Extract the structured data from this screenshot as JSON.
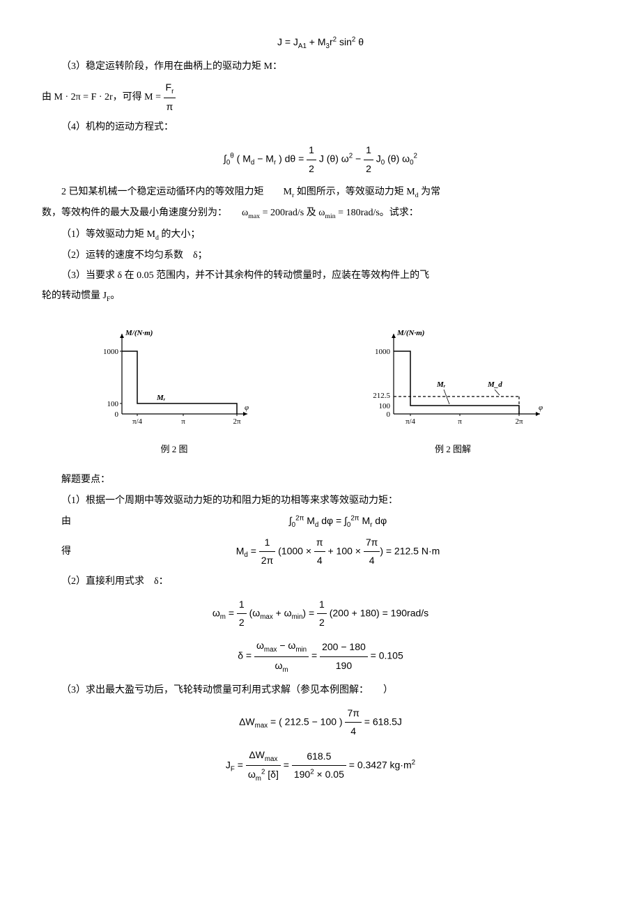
{
  "eq_top": "J = J<sub>A1</sub> + M<sub>3</sub>r<sup>2</sup> sin<sup>2</sup> θ",
  "p3": "（3）稳定运转阶段，作用在曲柄上的驱动力矩 M：",
  "p3_line": "由 M · 2π = F · 2r，可得 M = ",
  "p3_frac_num": "F<sub>r</sub>",
  "p3_frac_den": "π",
  "p4": "（4）机构的运动方程式：",
  "eq4": "∫<sub>0</sub><sup>θ</sup> ( M<sub>d</sub> − M<sub>r</sub> ) dθ = <span class=\"frac\"><span class=\"num\">1</span><span class=\"den\">2</span></span> J (θ) ω<sup>2</sup> − <span class=\"frac\"><span class=\"num\">1</span><span class=\"den\">2</span></span> J<sub>0</sub> (θ) ω<sub>0</sub><sup>2</sup>",
  "prob2_l1": "2 已知某机械一个稳定运动循环内的等效阻力矩　　M<sub>r</sub> 如图所示，等效驱动力矩 M<sub>d</sub> 为常",
  "prob2_l2": "数，等效构件的最大及最小角速度分别为：　　ω<sub>max</sub> = 200rad/s 及 ω<sub>min</sub> = 180rad/s。试求：",
  "prob2_q1": "（1）等效驱动力矩 M<sub>d</sub> 的大小；",
  "prob2_q2": "（2）运转的速度不均匀系数　δ；",
  "prob2_q3": "（3）当要求 δ 在 0.05 范围内，并不计其余构件的转动惯量时，应装在等效构件上的飞",
  "prob2_q3b": "轮的转动惯量 J<sub>F</sub>。",
  "fig1_caption": "例 2 图",
  "fig2_caption": "例 2 图解",
  "sol_head": "解题要点：",
  "sol1": "（1）根据一个周期中等效驱动力矩的功和阻力矩的功相等来求等效驱动力矩：",
  "sol1_by": "由",
  "sol1_eq": "∫<sub>0</sub><sup>2π</sup> M<sub>d</sub> dφ = ∫<sub>0</sub><sup>2π</sup> M<sub>r</sub> dφ",
  "sol1_get": "得",
  "sol1_eq2": "M<sub>d</sub> = <span class=\"frac\"><span class=\"num\">1</span><span class=\"den\">2π</span></span> (1000 × <span class=\"frac\"><span class=\"num\">π</span><span class=\"den\">4</span></span> + 100 × <span class=\"frac\"><span class=\"num\">7π</span><span class=\"den\">4</span></span>) = 212.5 N·m",
  "sol2": "（2）直接利用式求　δ：",
  "sol2_eq1": "ω<sub>m</sub> = <span class=\"frac\"><span class=\"num\">1</span><span class=\"den\">2</span></span> (ω<sub>max</sub> + ω<sub>min</sub>) = <span class=\"frac\"><span class=\"num\">1</span><span class=\"den\">2</span></span> (200 + 180) = 190rad/s",
  "sol2_eq2": "δ = <span class=\"frac\"><span class=\"num\">ω<sub>max</sub> − ω<sub>min</sub></span><span class=\"den\">ω<sub>m</sub></span></span> = <span class=\"frac\"><span class=\"num\">200 − 180</span><span class=\"den\">190</span></span> = 0.105",
  "sol3": "（3）求出最大盈亏功后，飞轮转动惯量可利用式求解（参见本例图解：　　）",
  "sol3_eq1": "ΔW<sub>max</sub> = ( 212.5 − 100 ) <span class=\"frac\"><span class=\"num\">7π</span><span class=\"den\">4</span></span> = 618.5J",
  "sol3_eq2": "J<sub>F</sub> = <span class=\"frac\"><span class=\"num\">ΔW<sub>max</sub></span><span class=\"den\">ω<sub>m</sub><sup>2</sup> [δ]</span></span> = <span class=\"frac\"><span class=\"num\">618.5</span><span class=\"den\">190<sup>2</sup> × 0.05</span></span> = 0.3427 kg·m<sup>2</sup>",
  "chart1": {
    "type": "line",
    "ylabel": "M/(N·m)",
    "xlabel": "φ",
    "y_ticks": [
      0,
      100,
      1000
    ],
    "x_ticks": [
      "π/4",
      "π",
      "2π"
    ],
    "series_label": "Mᵣ",
    "colors": {
      "axis": "#000000",
      "line": "#000000",
      "bg": "#ffffff"
    },
    "line_width": 1.2,
    "font_size": 11
  },
  "chart2": {
    "type": "line",
    "ylabel": "M/(N·m)",
    "xlabel": "φ",
    "y_ticks": [
      0,
      100,
      212.5,
      1000
    ],
    "x_ticks": [
      "π/4",
      "π",
      "2π"
    ],
    "series_labels": [
      "Mᵣ",
      "M_d"
    ],
    "dash_label": "M_d",
    "colors": {
      "axis": "#000000",
      "line": "#000000",
      "dash": "#000000",
      "bg": "#ffffff"
    },
    "line_width": 1.2,
    "dash_pattern": "4,3",
    "font_size": 11
  }
}
